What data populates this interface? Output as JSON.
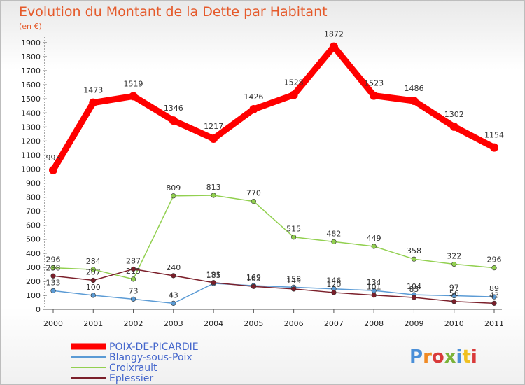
{
  "chart_data": {
    "type": "line",
    "title": "Evolution du Montant de la Dette par Habitant",
    "subtitle": "(en €)",
    "x": [
      "2000",
      "2001",
      "2002",
      "2003",
      "2004",
      "2005",
      "2006",
      "2007",
      "2008",
      "2009",
      "2010",
      "2011"
    ],
    "ylim": [
      0,
      1900
    ],
    "yticks": [
      0,
      100,
      200,
      300,
      400,
      500,
      600,
      700,
      800,
      900,
      1000,
      1100,
      1200,
      1300,
      1400,
      1500,
      1600,
      1700,
      1800,
      1900
    ],
    "grid": false,
    "legend_position": "bottom-left",
    "series": [
      {
        "name": "POIX-DE-PICARDIE",
        "color": "#ff0000",
        "values": [
          993,
          1473,
          1519,
          1346,
          1217,
          1426,
          1528,
          1872,
          1523,
          1486,
          1302,
          1154
        ]
      },
      {
        "name": "Blangy-sous-Poix",
        "color": "#5b9bd5",
        "values": [
          133,
          100,
          73,
          43,
          185,
          169,
          158,
          146,
          134,
          104,
          97,
          89
        ]
      },
      {
        "name": "Croixrault",
        "color": "#92d050",
        "values": [
          296,
          284,
          215,
          809,
          813,
          770,
          515,
          482,
          449,
          358,
          322,
          296
        ]
      },
      {
        "name": "Eplessier",
        "color": "#7b1f2a",
        "values": [
          238,
          207,
          287,
          240,
          191,
          163,
          145,
          120,
          101,
          85,
          56,
          43
        ]
      }
    ]
  },
  "logo_text": "Proxiti"
}
